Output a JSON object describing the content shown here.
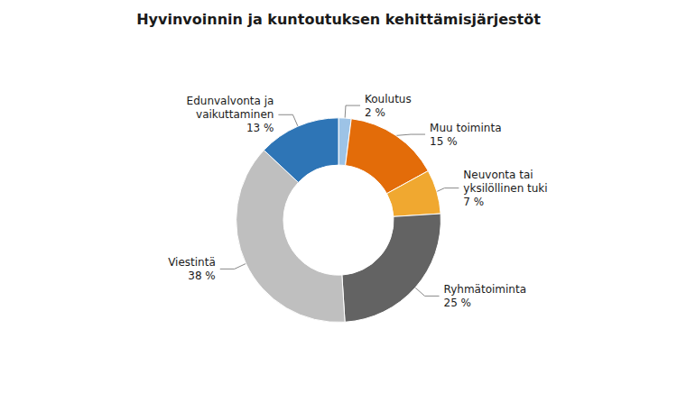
{
  "chart_data": {
    "type": "pie",
    "title": "Hyvinvoinnin ja kuntoutuksen kehittämisjärjestöt",
    "categories": [
      "Koulutus",
      "Muu toiminta",
      "Neuvonta tai\nyksilöllinen tuki",
      "Ryhmätoiminta",
      "Viestintä",
      "Edunvalvonta ja\nvaikuttaminen"
    ],
    "values": [
      2,
      15,
      7,
      25,
      38,
      13
    ],
    "value_labels": [
      "2 %",
      "15 %",
      "7 %",
      "25 %",
      "38 %",
      "13 %"
    ],
    "colors": [
      "#9dc3e6",
      "#e36c09",
      "#f0a830",
      "#636363",
      "#bfbfbf",
      "#2e75b6"
    ],
    "data_labels": true
  }
}
